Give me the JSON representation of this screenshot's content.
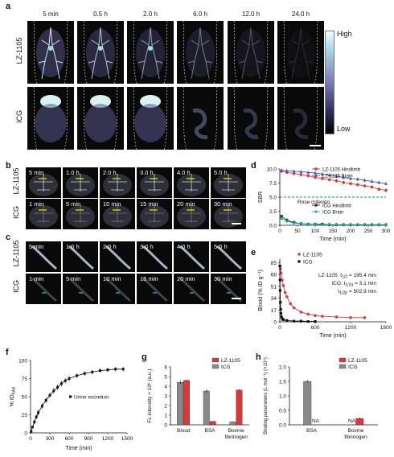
{
  "panels": {
    "a": {
      "label": "a",
      "timepoints": [
        "5 min",
        "0.5 h",
        "2.0 h",
        "6.0 h",
        "12.0 h",
        "24.0 h"
      ],
      "rows": [
        "LZ-1105",
        "ICG"
      ],
      "colorbar": {
        "high": "High",
        "low": "Low"
      }
    },
    "b": {
      "label": "b",
      "rows": [
        {
          "name": "LZ-1105",
          "times": [
            "5 min",
            "1.0 h",
            "2.0 h",
            "3.0 h",
            "4.0 h",
            "5.0 h"
          ]
        },
        {
          "name": "ICG",
          "times": [
            "1 min",
            "5 min",
            "10 min",
            "15 min",
            "20 min",
            "30 min"
          ]
        }
      ]
    },
    "c": {
      "label": "c",
      "rows": [
        {
          "name": "LZ-1105",
          "times": [
            "5 min",
            "1.0 h",
            "2.0 h",
            "3.0 h",
            "4.0 h",
            "5.0 h"
          ]
        },
        {
          "name": "ICG",
          "times": [
            "1 min",
            "5 min",
            "10 min",
            "15 min",
            "20 min",
            "30 min"
          ]
        }
      ]
    },
    "d": {
      "label": "d",
      "annotation": "Rose criterion"
    },
    "e": {
      "label": "e",
      "text1": "LZ-1105: t",
      "sub1": "1/2",
      "val1": " = 195.4 min",
      "text2": "ICG: t",
      "sub2": "1/2α",
      "val2": " = 3.1 min",
      "text3": "t",
      "sub3": "1/2β",
      "val3": " = 502.9 min"
    },
    "f": {
      "label": "f"
    },
    "g": {
      "label": "g",
      "na": [
        "NA",
        "NA"
      ]
    },
    "h": {
      "label": "h"
    }
  },
  "chart_data": [
    {
      "id": "d",
      "type": "line",
      "xlabel": "Time (min)",
      "ylabel": "SBR",
      "xlim": [
        0,
        300
      ],
      "ylim": [
        0,
        10
      ],
      "xticks": [
        0,
        50,
        100,
        150,
        200,
        250,
        300
      ],
      "yticks": [
        0.0,
        2.5,
        5.0,
        7.5,
        10.0
      ],
      "ytick_labels": [
        "0.0",
        "2.5",
        "5.0",
        "7.5",
        "10.0"
      ],
      "legend_position": "top-right",
      "reference_line": 5.0,
      "x": [
        5,
        20,
        40,
        60,
        80,
        100,
        120,
        140,
        160,
        180,
        200,
        220,
        240,
        260,
        280,
        300
      ],
      "series": [
        {
          "name": "LZ-1105 Hindlimb",
          "color": "#d73a3a",
          "marker": "circle",
          "values": [
            9.6,
            9.4,
            9.2,
            9.0,
            8.8,
            8.5,
            8.3,
            8.1,
            7.9,
            7.6,
            7.4,
            7.2,
            7.0,
            6.8,
            6.4,
            6.2
          ]
        },
        {
          "name": "LZ-1105 Brain",
          "color": "#4a57a8",
          "marker": "triangle",
          "values": [
            9.8,
            9.7,
            9.6,
            9.5,
            9.4,
            9.3,
            9.1,
            8.9,
            8.7,
            8.5,
            8.3,
            8.2,
            8.0,
            7.8,
            7.6,
            7.4
          ]
        },
        {
          "name": "ICG Hindlimb",
          "color": "#2a2a2a",
          "marker": "square",
          "values": [
            1.6,
            0.9,
            0.5,
            0.3,
            0.2,
            0.2,
            0.2,
            0.1,
            0.1,
            0.1,
            0.1,
            0.1,
            0.1,
            0.1,
            0.1,
            0.1
          ]
        },
        {
          "name": "ICG Brain",
          "color": "#18a7a7",
          "marker": "diamond",
          "values": [
            1.2,
            0.7,
            0.4,
            0.3,
            0.2,
            0.2,
            0.1,
            0.1,
            0.1,
            0.1,
            0.1,
            0.1,
            0.1,
            0.1,
            0.1,
            0.1
          ]
        }
      ]
    },
    {
      "id": "e",
      "type": "line",
      "xlabel": "Time (min)",
      "ylabel": "Blood (% ID g⁻¹)",
      "xlim": [
        0,
        1800
      ],
      "ylim": [
        0,
        90
      ],
      "xticks": [
        0,
        600,
        1200,
        1800
      ],
      "yticks": [
        0,
        17,
        34,
        51,
        68,
        85
      ],
      "legend_position": "top-right",
      "series": [
        {
          "name": "LZ-1105",
          "color": "#d73a3a",
          "marker": "circle",
          "x": [
            2,
            10,
            20,
            40,
            60,
            90,
            120,
            180,
            240,
            360,
            480,
            600,
            720,
            960,
            1200,
            1440
          ],
          "values": [
            80,
            76,
            70,
            60,
            52,
            42,
            36,
            26,
            20,
            14,
            11,
            9,
            8,
            7,
            6,
            6
          ]
        },
        {
          "name": "ICG",
          "color": "#111111",
          "marker": "square",
          "x": [
            1,
            3,
            5,
            10,
            15,
            20,
            30,
            45,
            60,
            120,
            240,
            360,
            480,
            600
          ],
          "values": [
            80,
            60,
            45,
            28,
            18,
            12,
            7,
            4,
            3,
            2,
            1,
            1,
            0.5,
            0.5
          ]
        }
      ]
    },
    {
      "id": "f",
      "type": "scatter",
      "xlabel": "Time (min)",
      "ylabel": "% ID",
      "ylabel_sub": "total",
      "xlim": [
        0,
        1500
      ],
      "ylim": [
        0,
        100
      ],
      "xticks": [
        0,
        300,
        600,
        900,
        1200,
        1500
      ],
      "yticks": [
        0,
        25,
        50,
        75,
        100
      ],
      "legend_position": "center",
      "series": [
        {
          "name": "Urine excretion",
          "color": "#111111",
          "x": [
            10,
            30,
            60,
            90,
            120,
            180,
            240,
            300,
            360,
            420,
            480,
            540,
            600,
            720,
            840,
            960,
            1080,
            1200,
            1320,
            1440
          ],
          "values": [
            2,
            8,
            15,
            22,
            28,
            37,
            45,
            52,
            58,
            63,
            68,
            72,
            75,
            79,
            82,
            84,
            86,
            87,
            88,
            88
          ],
          "errors": [
            1,
            2,
            3,
            3,
            4,
            4,
            4,
            4,
            4,
            4,
            4,
            4,
            4,
            3,
            3,
            3,
            3,
            3,
            3,
            3
          ]
        }
      ]
    },
    {
      "id": "g",
      "type": "bar",
      "ylabel": "FL intensity × 10⁶ (a.u.)",
      "ylim": [
        0,
        6
      ],
      "yticks": [
        0,
        1,
        2,
        3,
        4,
        5,
        6
      ],
      "categories": [
        "Blood",
        "BSA",
        "Bovine fibrinogen"
      ],
      "legend_position": "top-right",
      "series": [
        {
          "name": "LZ-1105",
          "color": "#d73a3a",
          "values": [
            4.6,
            0.35,
            3.6
          ],
          "errors": [
            0.1,
            0.05,
            0.08
          ]
        },
        {
          "name": "ICG",
          "color": "#8a8a8a",
          "values": [
            4.4,
            3.5,
            0.3
          ],
          "errors": [
            0.2,
            0.2,
            0.05
          ]
        }
      ]
    },
    {
      "id": "h",
      "type": "bar",
      "ylabel": "Binding parameters (L mol⁻¹) (×10⁵)",
      "ylim": [
        0,
        2.0
      ],
      "yticks": [
        0.0,
        0.5,
        1.0,
        1.5,
        2.0
      ],
      "ytick_labels": [
        "0.0",
        "0.5",
        "1.0",
        "1.5",
        "2.0"
      ],
      "categories": [
        "BSA",
        "Bovine fibrinogen"
      ],
      "legend_position": "top-right",
      "series": [
        {
          "name": "LZ-1105",
          "color": "#d73a3a",
          "values": [
            null,
            0.22
          ],
          "errors": [
            0,
            0.03
          ]
        },
        {
          "name": "ICG",
          "color": "#8a8a8a",
          "values": [
            1.5,
            null
          ],
          "errors": [
            0.04,
            0
          ]
        }
      ]
    }
  ]
}
